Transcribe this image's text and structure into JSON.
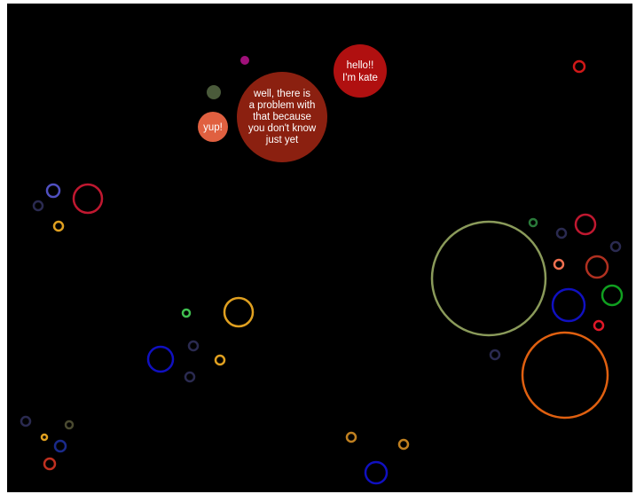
{
  "bubbles": [
    {
      "lines": [
        "hello!!",
        "I'm kate"
      ]
    },
    {
      "lines": [
        "well, there is",
        "a problem with",
        "that because",
        "you don't know",
        "just yet"
      ]
    },
    {
      "lines": [
        "yup!"
      ]
    }
  ]
}
